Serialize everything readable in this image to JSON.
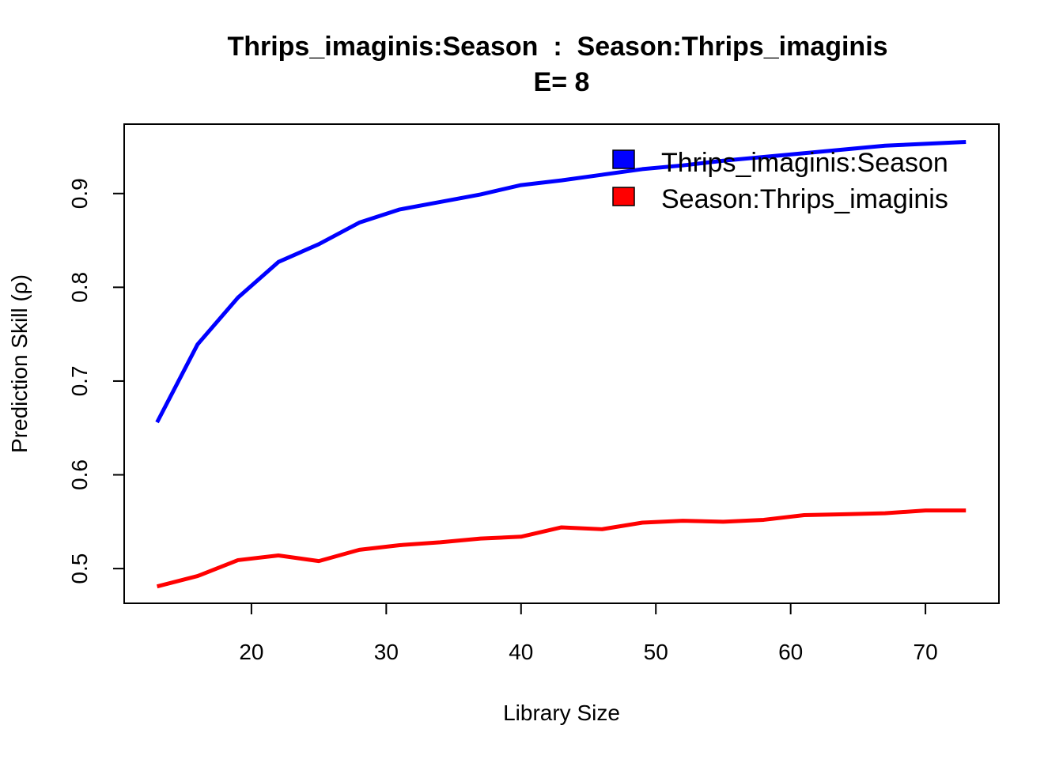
{
  "chart_data": {
    "type": "line",
    "title": "Thrips_imaginis:Season  :  Season:Thrips_imaginis",
    "subtitle": "E= 8",
    "xlabel": "Library Size",
    "ylabel": "Prediction Skill (ρ)",
    "xlim": [
      10.56,
      75.45
    ],
    "ylim": [
      0.463,
      0.974
    ],
    "xticks": [
      20,
      30,
      40,
      50,
      60,
      70
    ],
    "yticks": [
      0.5,
      0.6,
      0.7,
      0.8,
      0.9
    ],
    "grid": false,
    "legend_position": "top-right",
    "x": [
      13,
      16,
      19,
      22,
      25,
      28,
      31,
      34,
      37,
      40,
      43,
      46,
      49,
      52,
      55,
      58,
      61,
      64,
      67,
      70,
      73
    ],
    "series": [
      {
        "name": "Thrips_imaginis:Season",
        "color": "#0000FF",
        "values": [
          0.656,
          0.739,
          0.789,
          0.827,
          0.846,
          0.869,
          0.883,
          0.891,
          0.899,
          0.909,
          0.914,
          0.92,
          0.926,
          0.93,
          0.935,
          0.939,
          0.943,
          0.947,
          0.951,
          0.953,
          0.955
        ]
      },
      {
        "name": "Season:Thrips_imaginis",
        "color": "#FF0000",
        "values": [
          0.481,
          0.492,
          0.509,
          0.514,
          0.508,
          0.52,
          0.525,
          0.528,
          0.532,
          0.534,
          0.544,
          0.542,
          0.549,
          0.551,
          0.55,
          0.552,
          0.557,
          0.558,
          0.559,
          0.562,
          0.562
        ]
      }
    ]
  }
}
